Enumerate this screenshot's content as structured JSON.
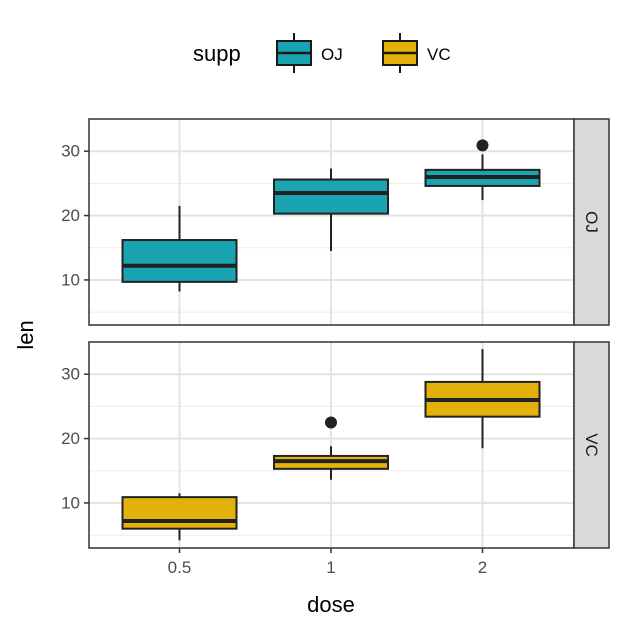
{
  "chart_data": {
    "type": "boxplot",
    "xlabel": "dose",
    "ylabel": "len",
    "categories": [
      "0.5",
      "1",
      "2"
    ],
    "ylim": [
      3,
      35
    ],
    "yticks": [
      10,
      20,
      30
    ],
    "grid": true,
    "legend": {
      "title": "supp",
      "position": "top",
      "entries": [
        {
          "label": "OJ",
          "color": "#1aa3b0"
        },
        {
          "label": "VC",
          "color": "#e3b10b"
        }
      ]
    },
    "panels": [
      {
        "strip": "OJ",
        "color": "#1aa3b0",
        "boxes": [
          {
            "x": "0.5",
            "min": 8.2,
            "q1": 9.7,
            "median": 12.2,
            "q3": 16.2,
            "max": 21.5,
            "outliers": []
          },
          {
            "x": "1",
            "min": 14.5,
            "q1": 20.3,
            "median": 23.5,
            "q3": 25.6,
            "max": 27.3,
            "outliers": []
          },
          {
            "x": "2",
            "min": 22.4,
            "q1": 24.6,
            "median": 26.0,
            "q3": 27.1,
            "max": 29.5,
            "outliers": [
              30.9
            ]
          }
        ]
      },
      {
        "strip": "VC",
        "color": "#e3b10b",
        "boxes": [
          {
            "x": "0.5",
            "min": 4.2,
            "q1": 6.0,
            "median": 7.2,
            "q3": 10.9,
            "max": 11.5,
            "outliers": []
          },
          {
            "x": "1",
            "min": 13.6,
            "q1": 15.3,
            "median": 16.5,
            "q3": 17.3,
            "max": 18.8,
            "outliers": [
              22.5
            ]
          },
          {
            "x": "2",
            "min": 18.5,
            "q1": 23.4,
            "median": 26.0,
            "q3": 28.8,
            "max": 33.9,
            "outliers": []
          }
        ]
      }
    ]
  }
}
